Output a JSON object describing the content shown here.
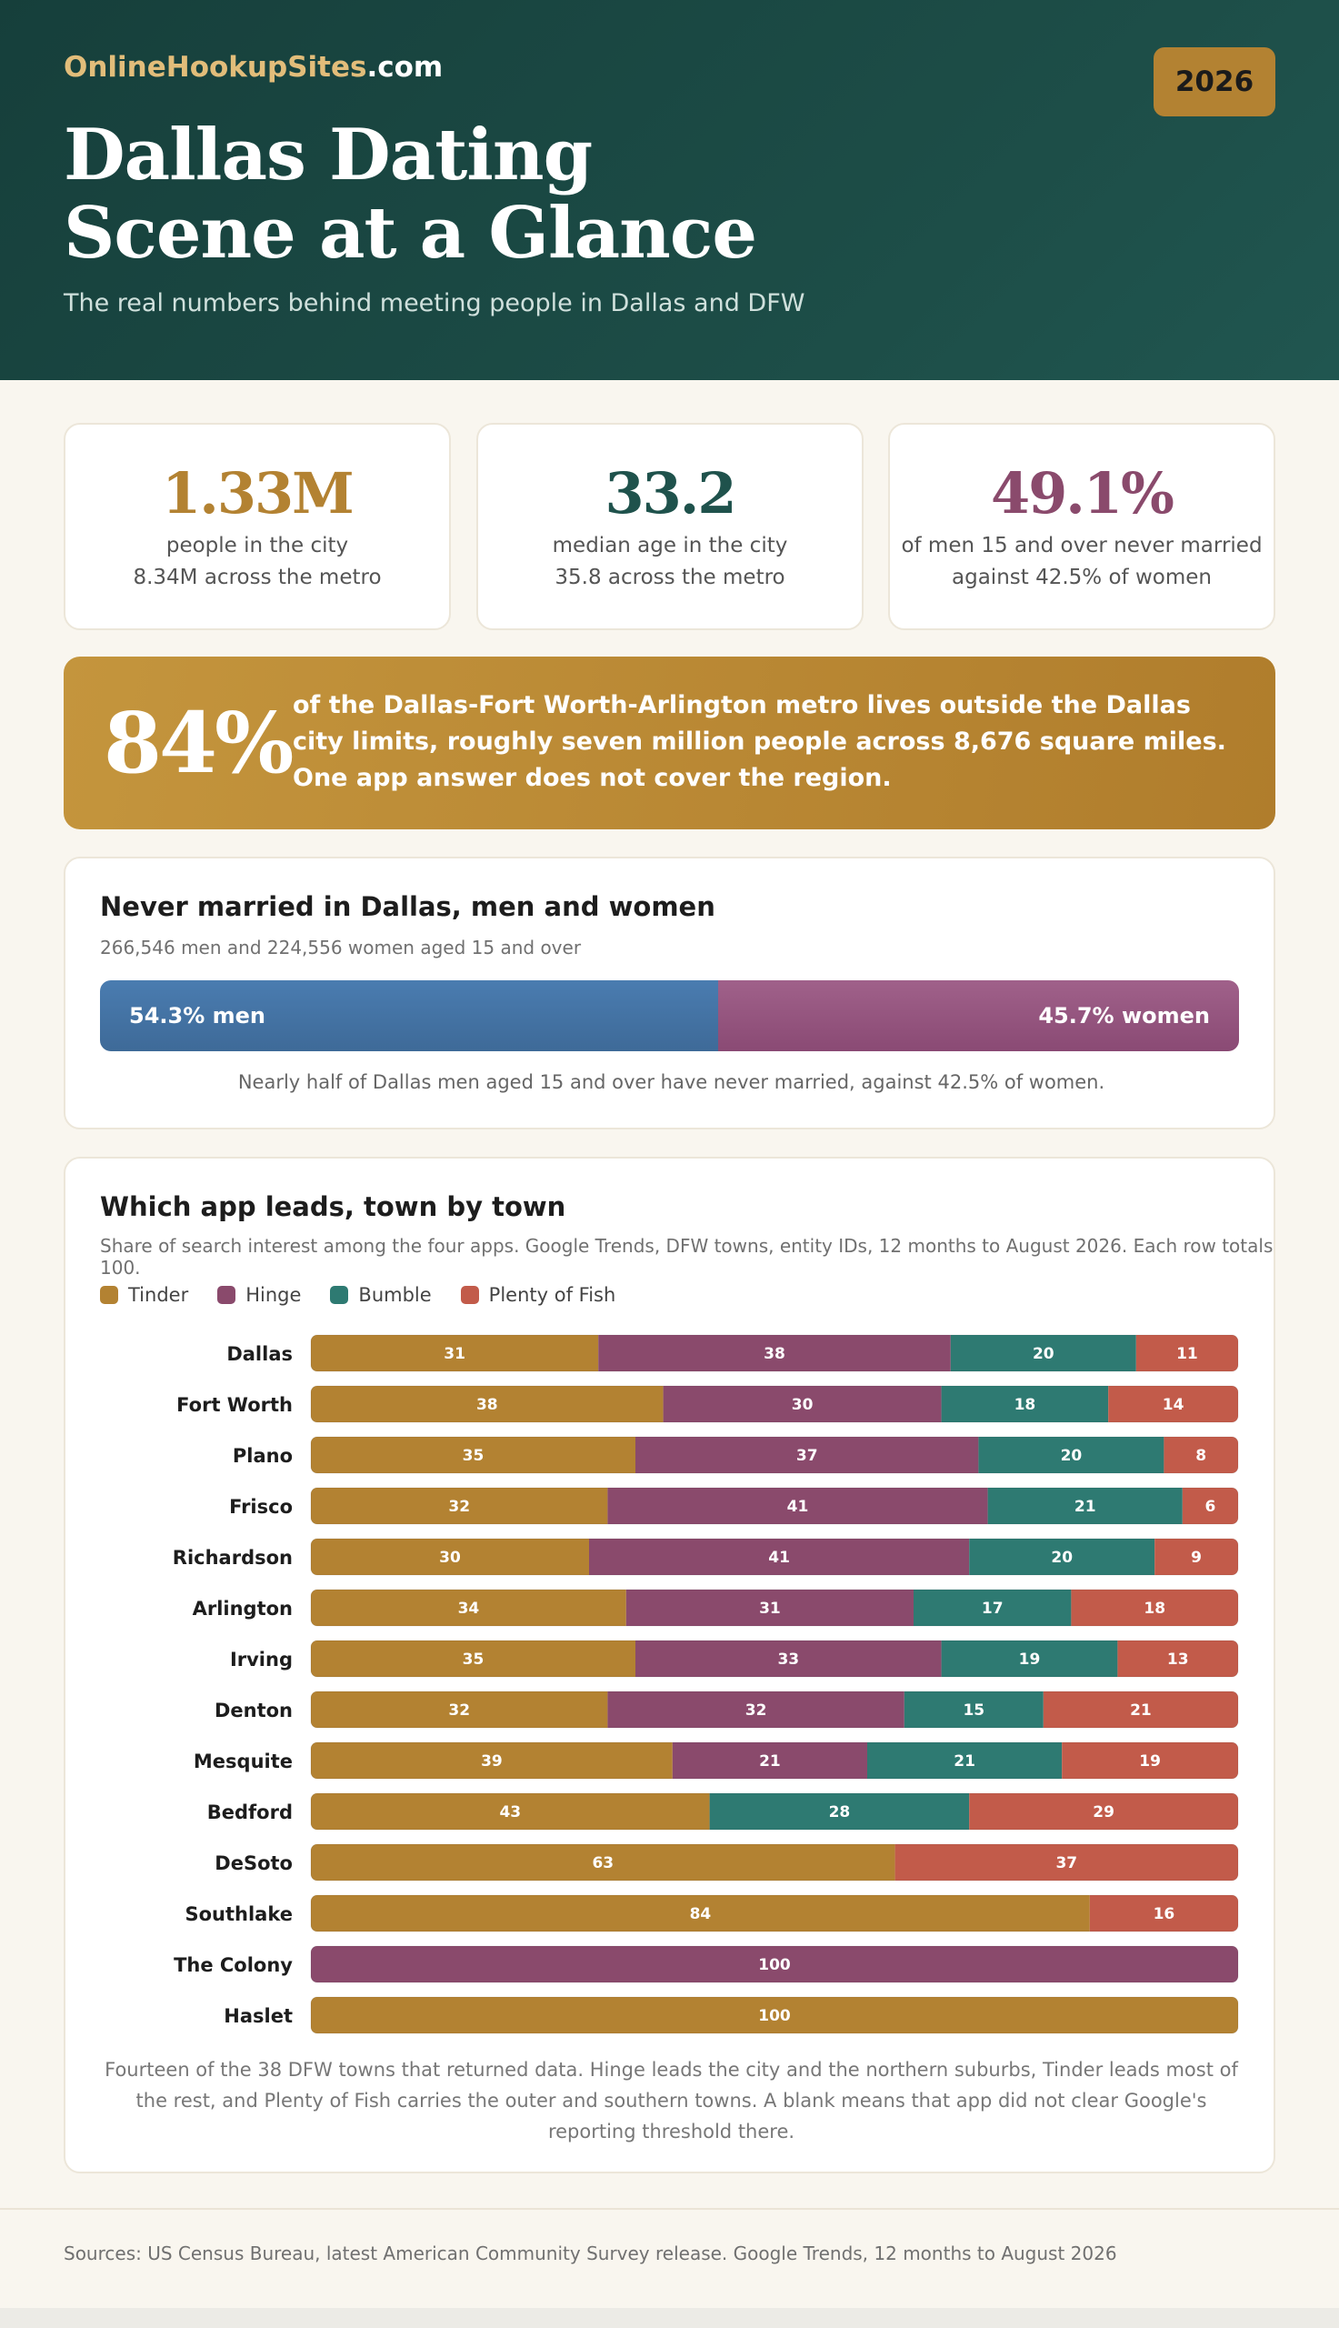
{
  "header": {
    "brand_name": "OnlineHookupSites",
    "brand_tld": ".com",
    "year": "2026",
    "title_line1": "Dallas Dating",
    "title_line2": "Scene at a Glance",
    "subtitle": "The real numbers behind meeting people in Dallas and DFW"
  },
  "stats": [
    {
      "value": "1.33M",
      "line1": "people in the city",
      "line2": "8.34M across the metro",
      "color": "#b38232"
    },
    {
      "value": "33.2",
      "line1": "median age in the city",
      "line2": "35.8 across the metro",
      "color": "#1f524c"
    },
    {
      "value": "49.1%",
      "line1": "of men 15 and over never married",
      "line2": "against 42.5% of women",
      "color": "#8a4a6c"
    }
  ],
  "callout": {
    "value": "84%",
    "text": "of the Dallas-Fort Worth-Arlington metro lives outside the Dallas city limits, roughly seven million people across 8,676 square miles. One app answer does not cover the region."
  },
  "never_married": {
    "title": "Never married in Dallas, men and women",
    "subtitle": "266,546 men and 224,556 women aged 15 and over",
    "men_label": "54.3% men",
    "women_label": "45.7% women",
    "men_share": 54.3,
    "women_share": 45.7,
    "note": "Nearly half of Dallas men aged 15 and over have never married, against 42.5% of women.",
    "colors": {
      "men": "#4172a3",
      "women": "#95547e"
    }
  },
  "apps_panel": {
    "title": "Which app leads, town by town",
    "subtitle": "Share of search interest among the four apps. Google Trends, DFW towns, entity IDs, 12 months to August 2026. Each row totals 100.",
    "footnote": "Fourteen of the 38 DFW towns that returned data. Hinge leads the city and the northern suburbs, Tinder leads most of the rest, and Plenty of Fish carries the outer and southern towns. A blank means that app did not clear Google's reporting threshold there."
  },
  "chart_data": {
    "type": "bar",
    "orientation": "horizontal",
    "stacked": true,
    "title": "Which app leads, town by town",
    "categories": [
      "Dallas",
      "Fort Worth",
      "Plano",
      "Frisco",
      "Richardson",
      "Arlington",
      "Irving",
      "Denton",
      "Mesquite",
      "Bedford",
      "DeSoto",
      "Southlake",
      "The Colony",
      "Haslet"
    ],
    "series": [
      {
        "name": "Tinder",
        "color": "#b38232",
        "values": [
          31,
          38,
          35,
          32,
          30,
          34,
          35,
          32,
          39,
          43,
          63,
          84,
          null,
          100
        ]
      },
      {
        "name": "Hinge",
        "color": "#8a4a6c",
        "values": [
          38,
          30,
          37,
          41,
          41,
          31,
          33,
          32,
          21,
          null,
          null,
          null,
          100,
          null
        ]
      },
      {
        "name": "Bumble",
        "color": "#2e7a72",
        "values": [
          20,
          18,
          20,
          21,
          20,
          17,
          19,
          15,
          21,
          28,
          null,
          null,
          null,
          null
        ]
      },
      {
        "name": "Plenty of Fish",
        "color": "#c25b4a",
        "values": [
          11,
          14,
          8,
          6,
          9,
          18,
          13,
          21,
          19,
          29,
          37,
          16,
          null,
          null
        ]
      }
    ],
    "xlim": [
      0,
      100
    ],
    "legend_position": "top-left",
    "grid": false
  },
  "footer": {
    "sources": "Sources: US Census Bureau, latest American Community Survey release. Google Trends, 12 months to August 2026"
  }
}
